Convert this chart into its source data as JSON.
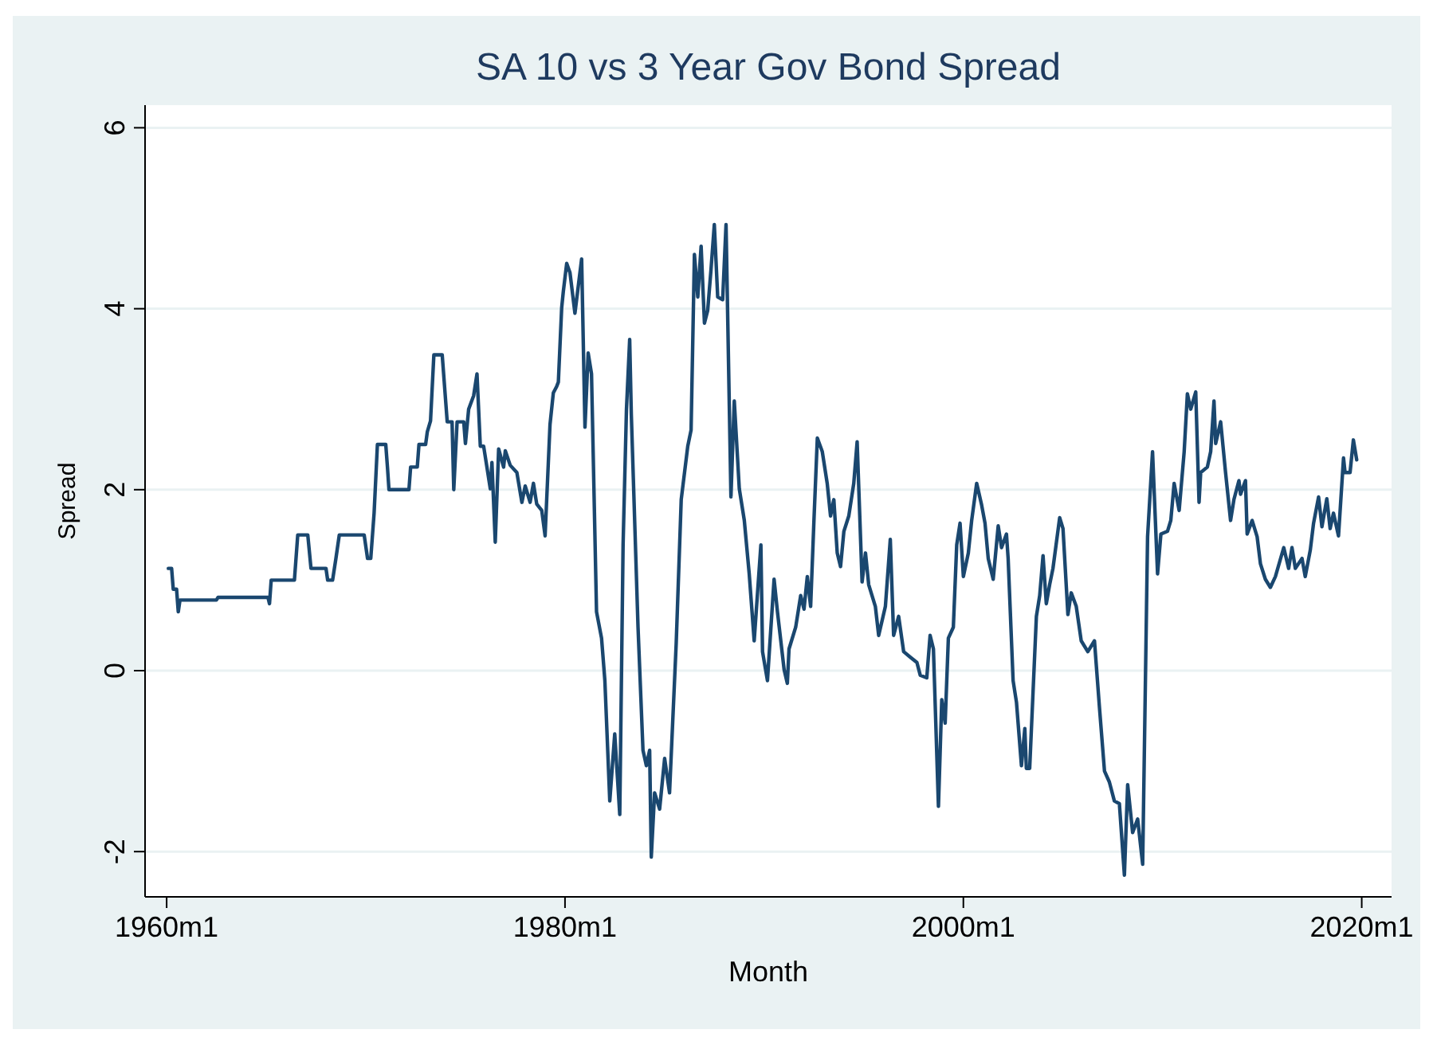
{
  "chart_data": {
    "type": "line",
    "title": "SA 10 vs 3 Year Gov Bond Spread",
    "xlabel": "Month",
    "ylabel": "Spread",
    "xlim": [
      "1958-12",
      "2021-07"
    ],
    "ylim": [
      -2.5,
      6.25
    ],
    "xticks": [
      {
        "value": "1960-01",
        "label": "1960m1"
      },
      {
        "value": "1980-01",
        "label": "1980m1"
      },
      {
        "value": "2000-01",
        "label": "2000m1"
      },
      {
        "value": "2020-01",
        "label": "2020m1"
      }
    ],
    "yticks": [
      -2,
      0,
      2,
      4,
      6
    ],
    "grid": "y",
    "marker": "none",
    "line_style": "solid",
    "series": [
      {
        "color": "#1a476f",
        "x": [
          "1960-02",
          "1960-04",
          "1960-05",
          "1960-07",
          "1960-08",
          "1960-09",
          "1962-07",
          "1962-08",
          "1965-02",
          "1965-03",
          "1965-04",
          "1966-06",
          "1966-08",
          "1967-02",
          "1967-04",
          "1968-01",
          "1968-02",
          "1968-05",
          "1968-07",
          "1968-09",
          "1969-12",
          "1970-02",
          "1970-04",
          "1970-06",
          "1970-08",
          "1971-01",
          "1971-02",
          "1971-03",
          "1972-03",
          "1972-04",
          "1972-08",
          "1972-09",
          "1973-01",
          "1973-02",
          "1973-04",
          "1973-06",
          "1973-11",
          "1974-02",
          "1974-05",
          "1974-06",
          "1974-08",
          "1974-12",
          "1975-01",
          "1975-03",
          "1975-06",
          "1975-08",
          "1975-10",
          "1975-12",
          "1976-04",
          "1976-05",
          "1976-07",
          "1976-09",
          "1976-12",
          "1977-01",
          "1977-04",
          "1977-08",
          "1977-11",
          "1978-01",
          "1978-04",
          "1978-06",
          "1978-08",
          "1978-11",
          "1979-01",
          "1979-04",
          "1979-06",
          "1979-08",
          "1979-09",
          "1979-11",
          "1979-12",
          "1980-02",
          "1980-04",
          "1980-07",
          "1980-11",
          "1981-01",
          "1981-03",
          "1981-05",
          "1981-08",
          "1981-11",
          "1982-01",
          "1982-04",
          "1982-07",
          "1982-10",
          "1982-12",
          "1983-02",
          "1983-04",
          "1983-05",
          "1983-09",
          "1983-12",
          "1984-02",
          "1984-04",
          "1984-05",
          "1984-07",
          "1984-10",
          "1985-01",
          "1985-04",
          "1985-08",
          "1985-11",
          "1986-03",
          "1986-05",
          "1986-07",
          "1986-09",
          "1986-11",
          "1987-01",
          "1987-03",
          "1987-05",
          "1987-07",
          "1987-09",
          "1987-12",
          "1988-02",
          "1988-05",
          "1988-07",
          "1988-10",
          "1989-01",
          "1989-04",
          "1989-07",
          "1989-11",
          "1989-12",
          "1990-03",
          "1990-07",
          "1990-09",
          "1991-01",
          "1991-03",
          "1991-04",
          "1991-08",
          "1991-11",
          "1992-01",
          "1992-03",
          "1992-05",
          "1992-07",
          "1992-09",
          "1992-12",
          "1993-03",
          "1993-05",
          "1993-07",
          "1993-09",
          "1993-11",
          "1994-01",
          "1994-04",
          "1994-07",
          "1994-09",
          "1994-12",
          "1995-02",
          "1995-04",
          "1995-08",
          "1995-10",
          "1996-02",
          "1996-05",
          "1996-07",
          "1996-10",
          "1997-01",
          "1997-05",
          "1997-09",
          "1997-11",
          "1998-03",
          "1998-05",
          "1998-07",
          "1998-10",
          "1998-12",
          "1999-02",
          "1999-04",
          "1999-07",
          "1999-09",
          "1999-11",
          "2000-01",
          "2000-04",
          "2000-06",
          "2000-09",
          "2000-12",
          "2001-02",
          "2001-04",
          "2001-07",
          "2001-10",
          "2001-12",
          "2002-03",
          "2002-04",
          "2002-07",
          "2002-09",
          "2002-12",
          "2003-02",
          "2003-03",
          "2003-05",
          "2003-09",
          "2003-11",
          "2004-01",
          "2004-03",
          "2004-05",
          "2004-07",
          "2004-11",
          "2005-01",
          "2005-04",
          "2005-06",
          "2005-09",
          "2005-12",
          "2006-04",
          "2006-08",
          "2006-11",
          "2007-02",
          "2007-05",
          "2007-08",
          "2007-11",
          "2008-02",
          "2008-04",
          "2008-07",
          "2008-10",
          "2009-01",
          "2009-04",
          "2009-07",
          "2009-10",
          "2009-12",
          "2010-04",
          "2010-06",
          "2010-08",
          "2010-11",
          "2011-02",
          "2011-04",
          "2011-06",
          "2011-09",
          "2011-11",
          "2011-12",
          "2012-04",
          "2012-06",
          "2012-08",
          "2012-09",
          "2012-12",
          "2013-03",
          "2013-06",
          "2013-08",
          "2013-11",
          "2013-12",
          "2014-03",
          "2014-04",
          "2014-07",
          "2014-10",
          "2014-12",
          "2015-03",
          "2015-06",
          "2015-09",
          "2016-02",
          "2016-05",
          "2016-07",
          "2016-09",
          "2017-01",
          "2017-03",
          "2017-06",
          "2017-08",
          "2017-11",
          "2018-01",
          "2018-04",
          "2018-06",
          "2018-08",
          "2018-11",
          "2019-02",
          "2019-03",
          "2019-06",
          "2019-08",
          "2019-10"
        ],
        "values": [
          1.13,
          1.13,
          0.9,
          0.9,
          0.65,
          0.78,
          0.78,
          0.81,
          0.81,
          0.74,
          1.0,
          1.0,
          1.5,
          1.5,
          1.13,
          1.13,
          1.0,
          1.0,
          1.24,
          1.5,
          1.5,
          1.24,
          1.24,
          1.74,
          2.5,
          2.5,
          2.25,
          2.0,
          2.0,
          2.25,
          2.25,
          2.5,
          2.5,
          2.64,
          2.76,
          3.49,
          3.49,
          2.75,
          2.75,
          2.0,
          2.75,
          2.75,
          2.51,
          2.89,
          3.04,
          3.28,
          2.48,
          2.48,
          2.01,
          2.3,
          1.42,
          2.45,
          2.25,
          2.43,
          2.27,
          2.19,
          1.86,
          2.04,
          1.86,
          2.07,
          1.84,
          1.77,
          1.49,
          2.72,
          3.07,
          3.14,
          3.19,
          4.01,
          4.19,
          4.5,
          4.4,
          3.95,
          4.55,
          2.69,
          3.51,
          3.28,
          0.65,
          0.36,
          -0.11,
          -1.44,
          -0.7,
          -1.59,
          1.39,
          2.89,
          3.66,
          2.83,
          0.48,
          -0.88,
          -1.05,
          -0.88,
          -2.06,
          -1.35,
          -1.53,
          -0.97,
          -1.35,
          0.3,
          1.89,
          2.48,
          2.66,
          4.6,
          4.13,
          4.69,
          3.84,
          3.98,
          4.43,
          4.93,
          4.13,
          4.1,
          4.93,
          1.92,
          2.98,
          2.01,
          1.66,
          1.07,
          0.33,
          1.39,
          0.21,
          -0.11,
          1.01,
          0.65,
          0.01,
          -0.14,
          0.24,
          0.48,
          0.83,
          0.68,
          1.04,
          0.71,
          1.66,
          2.57,
          2.42,
          2.07,
          1.71,
          1.89,
          1.3,
          1.15,
          1.54,
          1.71,
          2.07,
          2.53,
          0.98,
          1.3,
          0.95,
          0.71,
          0.39,
          0.71,
          1.45,
          0.39,
          0.6,
          0.21,
          0.15,
          0.09,
          -0.05,
          -0.08,
          0.39,
          0.24,
          -1.5,
          -0.32,
          -0.58,
          0.36,
          0.48,
          1.39,
          1.63,
          1.04,
          1.3,
          1.66,
          2.07,
          1.83,
          1.63,
          1.24,
          1.01,
          1.6,
          1.36,
          1.51,
          1.24,
          -0.11,
          -0.35,
          -1.05,
          -0.64,
          -1.08,
          -1.08,
          0.6,
          0.83,
          1.27,
          0.74,
          0.95,
          1.13,
          1.69,
          1.57,
          0.62,
          0.86,
          0.71,
          0.33,
          0.21,
          0.33,
          -0.41,
          -1.11,
          -1.23,
          -1.44,
          -1.47,
          -2.26,
          -1.26,
          -1.79,
          -1.64,
          -2.14,
          1.48,
          2.42,
          1.07,
          1.51,
          1.54,
          1.66,
          2.07,
          1.77,
          2.42,
          3.06,
          2.89,
          3.08,
          1.86,
          2.19,
          2.25,
          2.42,
          2.98,
          2.51,
          2.75,
          2.19,
          1.66,
          1.89,
          2.1,
          1.95,
          2.1,
          1.51,
          1.66,
          1.48,
          1.18,
          1.01,
          0.92,
          1.04,
          1.36,
          1.13,
          1.36,
          1.13,
          1.24,
          1.04,
          1.33,
          1.63,
          1.92,
          1.59,
          1.9,
          1.57,
          1.74,
          1.49,
          2.35,
          2.19,
          2.19,
          2.55,
          2.33
        ]
      }
    ]
  }
}
